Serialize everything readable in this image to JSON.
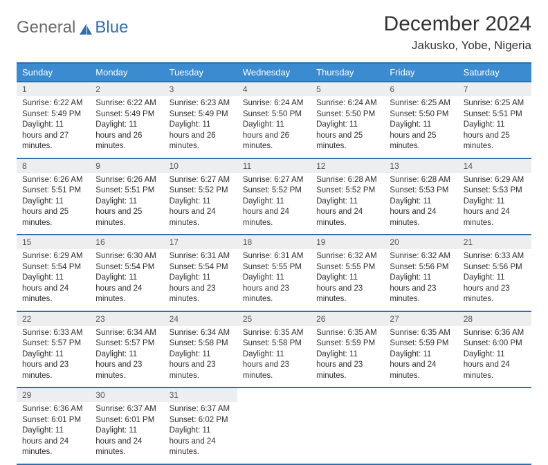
{
  "colors": {
    "accent": "#2f6fb0",
    "header_bg": "#3b8bd0",
    "daynum_bg": "#eceeef",
    "text": "#2e2e2e",
    "logo_gray": "#6a6a6a"
  },
  "logo": {
    "word1": "General",
    "word2": "Blue"
  },
  "title": "December 2024",
  "location": "Jakusko, Yobe, Nigeria",
  "day_headers": [
    "Sunday",
    "Monday",
    "Tuesday",
    "Wednesday",
    "Thursday",
    "Friday",
    "Saturday"
  ],
  "weeks": [
    [
      {
        "n": "1",
        "sr": "6:22 AM",
        "ss": "5:49 PM",
        "dl": "11 hours and 27 minutes."
      },
      {
        "n": "2",
        "sr": "6:22 AM",
        "ss": "5:49 PM",
        "dl": "11 hours and 26 minutes."
      },
      {
        "n": "3",
        "sr": "6:23 AM",
        "ss": "5:49 PM",
        "dl": "11 hours and 26 minutes."
      },
      {
        "n": "4",
        "sr": "6:24 AM",
        "ss": "5:50 PM",
        "dl": "11 hours and 26 minutes."
      },
      {
        "n": "5",
        "sr": "6:24 AM",
        "ss": "5:50 PM",
        "dl": "11 hours and 25 minutes."
      },
      {
        "n": "6",
        "sr": "6:25 AM",
        "ss": "5:50 PM",
        "dl": "11 hours and 25 minutes."
      },
      {
        "n": "7",
        "sr": "6:25 AM",
        "ss": "5:51 PM",
        "dl": "11 hours and 25 minutes."
      }
    ],
    [
      {
        "n": "8",
        "sr": "6:26 AM",
        "ss": "5:51 PM",
        "dl": "11 hours and 25 minutes."
      },
      {
        "n": "9",
        "sr": "6:26 AM",
        "ss": "5:51 PM",
        "dl": "11 hours and 25 minutes."
      },
      {
        "n": "10",
        "sr": "6:27 AM",
        "ss": "5:52 PM",
        "dl": "11 hours and 24 minutes."
      },
      {
        "n": "11",
        "sr": "6:27 AM",
        "ss": "5:52 PM",
        "dl": "11 hours and 24 minutes."
      },
      {
        "n": "12",
        "sr": "6:28 AM",
        "ss": "5:52 PM",
        "dl": "11 hours and 24 minutes."
      },
      {
        "n": "13",
        "sr": "6:28 AM",
        "ss": "5:53 PM",
        "dl": "11 hours and 24 minutes."
      },
      {
        "n": "14",
        "sr": "6:29 AM",
        "ss": "5:53 PM",
        "dl": "11 hours and 24 minutes."
      }
    ],
    [
      {
        "n": "15",
        "sr": "6:29 AM",
        "ss": "5:54 PM",
        "dl": "11 hours and 24 minutes."
      },
      {
        "n": "16",
        "sr": "6:30 AM",
        "ss": "5:54 PM",
        "dl": "11 hours and 24 minutes."
      },
      {
        "n": "17",
        "sr": "6:31 AM",
        "ss": "5:54 PM",
        "dl": "11 hours and 23 minutes."
      },
      {
        "n": "18",
        "sr": "6:31 AM",
        "ss": "5:55 PM",
        "dl": "11 hours and 23 minutes."
      },
      {
        "n": "19",
        "sr": "6:32 AM",
        "ss": "5:55 PM",
        "dl": "11 hours and 23 minutes."
      },
      {
        "n": "20",
        "sr": "6:32 AM",
        "ss": "5:56 PM",
        "dl": "11 hours and 23 minutes."
      },
      {
        "n": "21",
        "sr": "6:33 AM",
        "ss": "5:56 PM",
        "dl": "11 hours and 23 minutes."
      }
    ],
    [
      {
        "n": "22",
        "sr": "6:33 AM",
        "ss": "5:57 PM",
        "dl": "11 hours and 23 minutes."
      },
      {
        "n": "23",
        "sr": "6:34 AM",
        "ss": "5:57 PM",
        "dl": "11 hours and 23 minutes."
      },
      {
        "n": "24",
        "sr": "6:34 AM",
        "ss": "5:58 PM",
        "dl": "11 hours and 23 minutes."
      },
      {
        "n": "25",
        "sr": "6:35 AM",
        "ss": "5:58 PM",
        "dl": "11 hours and 23 minutes."
      },
      {
        "n": "26",
        "sr": "6:35 AM",
        "ss": "5:59 PM",
        "dl": "11 hours and 23 minutes."
      },
      {
        "n": "27",
        "sr": "6:35 AM",
        "ss": "5:59 PM",
        "dl": "11 hours and 24 minutes."
      },
      {
        "n": "28",
        "sr": "6:36 AM",
        "ss": "6:00 PM",
        "dl": "11 hours and 24 minutes."
      }
    ],
    [
      {
        "n": "29",
        "sr": "6:36 AM",
        "ss": "6:01 PM",
        "dl": "11 hours and 24 minutes."
      },
      {
        "n": "30",
        "sr": "6:37 AM",
        "ss": "6:01 PM",
        "dl": "11 hours and 24 minutes."
      },
      {
        "n": "31",
        "sr": "6:37 AM",
        "ss": "6:02 PM",
        "dl": "11 hours and 24 minutes."
      },
      null,
      null,
      null,
      null
    ]
  ],
  "labels": {
    "sunrise": "Sunrise:",
    "sunset": "Sunset:",
    "daylight": "Daylight:"
  }
}
